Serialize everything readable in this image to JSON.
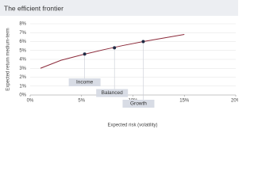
{
  "chart_data": {
    "type": "line",
    "title": "The efficient frontier",
    "x_label": "Expected risk (volatility)",
    "y_label": "Expected return medium-term",
    "series": [
      {
        "color": "#8b2a3a",
        "x": [
          1,
          3,
          5,
          7,
          9,
          11,
          13,
          15
        ],
        "values": [
          3.0,
          3.9,
          4.5,
          5.05,
          5.55,
          6.0,
          6.4,
          6.8
        ]
      }
    ],
    "points": {
      "color": "#1f2a44",
      "box_color": "#d8dce5",
      "x": [
        5.3,
        8.2,
        11
      ],
      "values": [
        4.6,
        5.3,
        6.0
      ],
      "labels": [
        "Income",
        "Balanced",
        "Growth"
      ]
    },
    "xlim": [
      0,
      20
    ],
    "ylim": [
      0,
      8
    ],
    "xticks": [
      {
        "value": 0,
        "label": "0%"
      },
      {
        "value": 5,
        "label": "5%"
      },
      {
        "value": 10,
        "label": "10%"
      },
      {
        "value": 15,
        "label": "15%"
      },
      {
        "value": 20,
        "label": "20%"
      }
    ],
    "yticks": [
      {
        "value": 0,
        "label": "0%"
      },
      {
        "value": 1,
        "label": "1%"
      },
      {
        "value": 2,
        "label": "2%"
      },
      {
        "value": 3,
        "label": "3%"
      },
      {
        "value": 4,
        "label": "4%"
      },
      {
        "value": 5,
        "label": "5%"
      },
      {
        "value": 6,
        "label": "6%"
      },
      {
        "value": 7,
        "label": "7%"
      },
      {
        "value": 8,
        "label": "8%"
      }
    ],
    "grid": true
  }
}
